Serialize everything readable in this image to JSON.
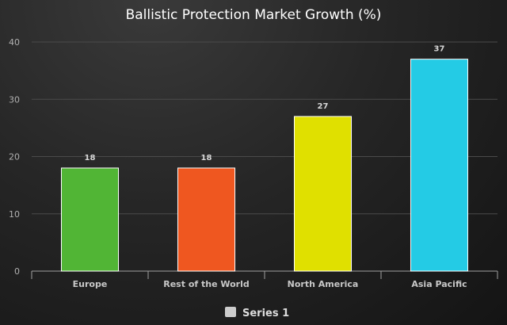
{
  "chart_data": {
    "type": "bar",
    "title": "Ballistic Protection Market Growth (%)",
    "categories": [
      "Europe",
      "Rest of the World",
      "North America",
      "Asia Pacific"
    ],
    "series": [
      {
        "name": "Series 1",
        "values": [
          18,
          18,
          27,
          37
        ]
      }
    ],
    "bar_colors": [
      "#51b535",
      "#ef5720",
      "#e0e000",
      "#24cbe5"
    ],
    "legend_swatch_color": "#cccccc",
    "ylim": [
      0,
      40
    ],
    "yticks": [
      0,
      10,
      20,
      30,
      40
    ],
    "grid": true,
    "legend": "bottom-center",
    "data_labels": true
  }
}
